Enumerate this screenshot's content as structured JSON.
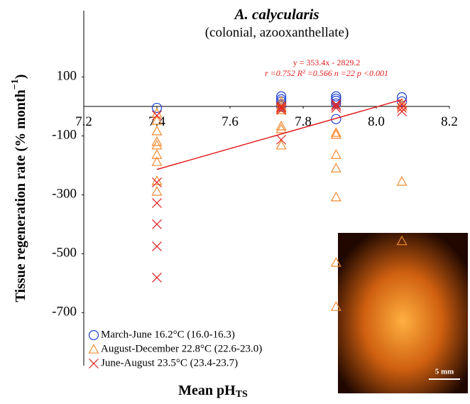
{
  "chart_data": {
    "type": "scatter",
    "title": "A. calycularis",
    "subtitle": "(colonial, azooxanthellate)",
    "xlabel": "Mean pH",
    "xlabel_sub": "TS",
    "ylabel": "Tissue regeneration rate (% month",
    "ylabel_sup": "−1",
    "ylabel_end": ")",
    "xlim": [
      7.2,
      8.2
    ],
    "xticks": [
      7.2,
      7.4,
      7.6,
      7.8,
      8.0,
      8.2
    ],
    "ylim": [
      -880,
      325
    ],
    "yticks": [
      100,
      -100,
      -300,
      -500,
      -700
    ],
    "series": [
      {
        "name": "March-June 16.2°C (16.0-16.3)",
        "color": "#2040d0",
        "marker": "circle",
        "x": [
          7.4,
          7.74,
          7.74,
          7.74,
          7.74,
          7.74,
          7.89,
          7.89,
          7.89,
          7.89,
          7.89,
          8.07,
          8.07
        ],
        "values": [
          -5,
          34,
          24,
          17,
          7,
          0,
          34,
          26,
          19,
          10,
          -43,
          31,
          17
        ]
      },
      {
        "name": "August-December 22.8°C (22.6-23.0)",
        "color": "#f08a30",
        "marker": "triangle",
        "x": [
          7.4,
          7.4,
          7.4,
          7.4,
          7.4,
          7.4,
          7.4,
          7.4,
          7.4,
          7.74,
          7.74,
          7.74,
          7.74,
          7.74,
          7.74,
          7.74,
          7.89,
          7.89,
          7.89,
          7.89,
          7.89,
          7.89,
          7.89,
          8.07,
          8.07,
          8.07,
          8.07
        ],
        "values": [
          -24,
          -48,
          -84,
          -120,
          -132,
          -164,
          -188,
          -253,
          -289,
          17,
          5,
          -5,
          -12,
          -67,
          -77,
          -132,
          -89,
          -96,
          -164,
          -210,
          -308,
          -530,
          -680,
          10,
          0,
          -255,
          -457
        ]
      },
      {
        "name": "June-August 23.5°C (23.4-23.7)",
        "color": "#e02020",
        "marker": "x",
        "x": [
          7.4,
          7.4,
          7.4,
          7.4,
          7.4,
          7.4,
          7.74,
          7.74,
          7.74,
          7.74,
          7.89,
          7.89,
          7.89,
          8.07,
          8.07,
          8.07
        ],
        "values": [
          -31,
          -258,
          -328,
          -400,
          -475,
          -581,
          0,
          -5,
          -12,
          -113,
          7,
          2,
          -5,
          7,
          -5,
          -17
        ]
      }
    ],
    "trendline": {
      "x": [
        7.4,
        8.07
      ],
      "values": [
        -214,
        23
      ],
      "color": "#e02020",
      "equation": "y = 353.4x - 2829.2",
      "stats": "r =0.752 R² =0.566 n =22 p <0.001"
    },
    "scale_bar": "5 mm"
  }
}
